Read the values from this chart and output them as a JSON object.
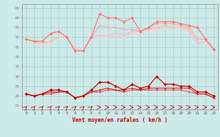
{
  "x": [
    0,
    1,
    2,
    3,
    4,
    5,
    6,
    7,
    8,
    9,
    10,
    11,
    12,
    13,
    14,
    15,
    16,
    17,
    18,
    19,
    20,
    21,
    22,
    23
  ],
  "line_rafalmax": [
    49,
    48,
    48,
    52,
    53,
    50,
    43,
    43,
    50,
    62,
    60,
    60,
    58,
    60,
    53,
    55,
    58,
    58,
    58,
    57,
    56,
    55,
    49,
    44
  ],
  "line_rafal2": [
    49,
    48,
    48,
    52,
    53,
    50,
    43,
    43,
    50,
    56,
    55,
    55,
    54,
    54,
    53,
    55,
    57,
    57,
    57,
    56,
    55,
    49,
    49,
    44
  ],
  "line_rafal3": [
    49,
    48,
    47,
    48,
    50,
    50,
    44,
    43,
    51,
    51,
    51,
    52,
    51,
    53,
    53,
    54,
    55,
    56,
    55,
    55,
    54,
    47,
    48,
    44
  ],
  "line_rafal4": [
    49,
    47,
    47,
    47,
    50,
    50,
    44,
    43,
    51,
    50,
    50,
    51,
    50,
    52,
    52,
    53,
    54,
    55,
    55,
    55,
    53,
    47,
    47,
    43
  ],
  "line_windmax": [
    21,
    20,
    21,
    23,
    23,
    22,
    19,
    20,
    23,
    27,
    27,
    25,
    23,
    26,
    24,
    25,
    30,
    26,
    26,
    25,
    25,
    22,
    22,
    20
  ],
  "line_wind2": [
    21,
    20,
    21,
    22,
    22,
    22,
    19,
    20,
    22,
    23,
    24,
    23,
    23,
    24,
    23,
    24,
    24,
    24,
    24,
    24,
    24,
    21,
    21,
    19
  ],
  "line_wind3": [
    21,
    20,
    21,
    21,
    22,
    22,
    19,
    20,
    22,
    22,
    23,
    23,
    22,
    23,
    23,
    23,
    23,
    23,
    23,
    23,
    22,
    21,
    21,
    19
  ],
  "bg_color": "#cceae8",
  "grid_color": "#aacccc",
  "color_rafalmax": "#ff7777",
  "color_rafal2": "#ffaaaa",
  "color_rafal3": "#ffbbbb",
  "color_rafal4": "#ffcccc",
  "color_windmax": "#cc0000",
  "color_wind2": "#dd3333",
  "color_wind3": "#ee5555",
  "xlabel": "Vent moyen/en rafales ( km/h )",
  "yticks": [
    15,
    20,
    25,
    30,
    35,
    40,
    45,
    50,
    55,
    60,
    65
  ],
  "xticks": [
    0,
    1,
    2,
    3,
    4,
    5,
    6,
    7,
    8,
    9,
    10,
    11,
    12,
    13,
    14,
    15,
    16,
    17,
    18,
    19,
    20,
    21,
    22,
    23
  ],
  "ylim": [
    13,
    67
  ],
  "xlim": [
    -0.5,
    23.5
  ]
}
